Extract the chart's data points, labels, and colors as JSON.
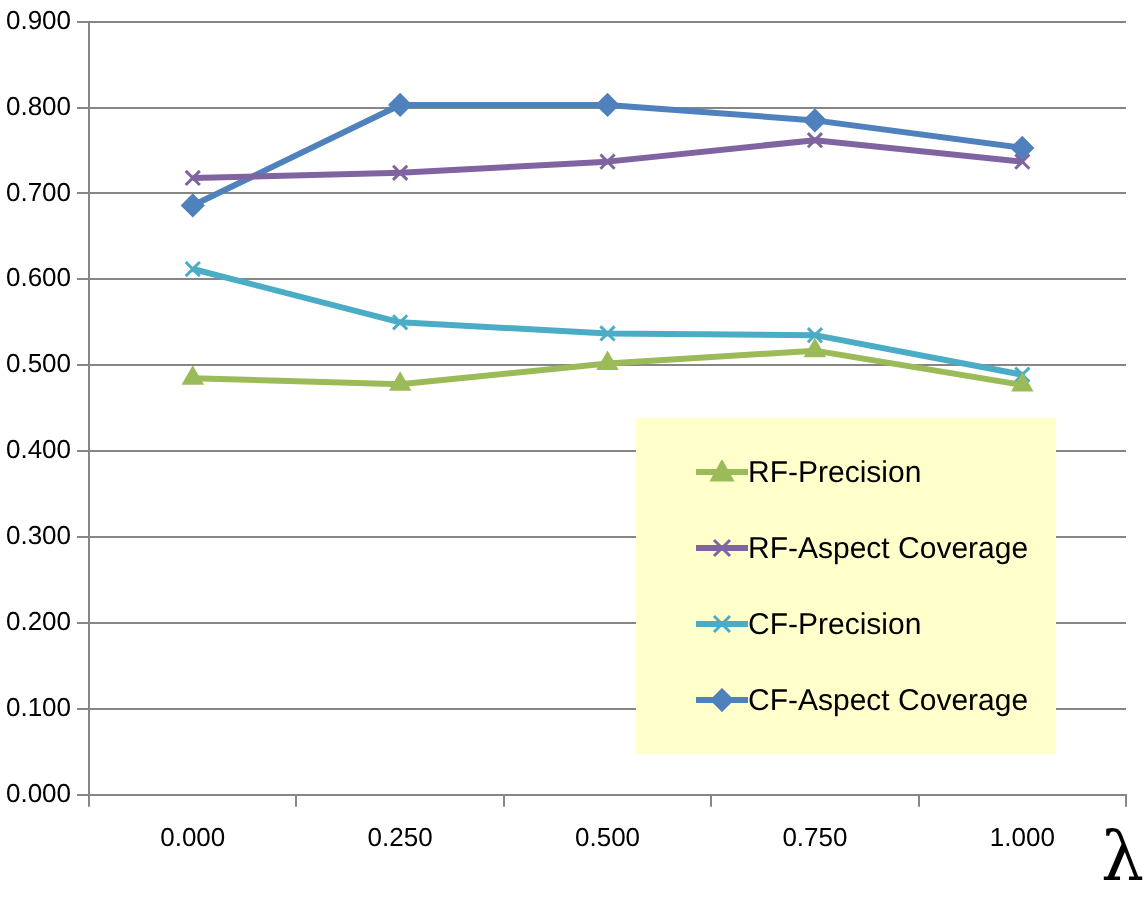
{
  "chart_data": {
    "type": "line",
    "xlabel": "λ",
    "categories": [
      "0.000",
      "0.250",
      "0.500",
      "0.750",
      "1.000"
    ],
    "series": [
      {
        "name": "RF-Precision",
        "color": "#9bbb59",
        "marker": "triangle",
        "values": [
          0.485,
          0.478,
          0.502,
          0.517,
          0.477
        ]
      },
      {
        "name": "RF-Aspect Coverage",
        "color": "#8064a2",
        "marker": "cross",
        "values": [
          0.718,
          0.724,
          0.737,
          0.762,
          0.737
        ]
      },
      {
        "name": "CF-Precision",
        "color": "#4bacc6",
        "marker": "cross",
        "values": [
          0.612,
          0.55,
          0.537,
          0.535,
          0.489
        ]
      },
      {
        "name": "CF-Aspect Coverage",
        "color": "#4f81bd",
        "marker": "diamond",
        "values": [
          0.686,
          0.803,
          0.803,
          0.785,
          0.753
        ]
      }
    ],
    "ylim": [
      0,
      0.9
    ],
    "yticks": [
      {
        "value": 0,
        "label": "0.000"
      },
      {
        "value": 0.1,
        "label": "0.100"
      },
      {
        "value": 0.2,
        "label": "0.200"
      },
      {
        "value": 0.3,
        "label": "0.300"
      },
      {
        "value": 0.4,
        "label": "0.400"
      },
      {
        "value": 0.5,
        "label": "0.500"
      },
      {
        "value": 0.6,
        "label": "0.600"
      },
      {
        "value": 0.7,
        "label": "0.700"
      },
      {
        "value": 0.8,
        "label": "0.800"
      },
      {
        "value": 0.9,
        "label": "0.900"
      }
    ],
    "grid": "y",
    "legend": "bottom right"
  }
}
